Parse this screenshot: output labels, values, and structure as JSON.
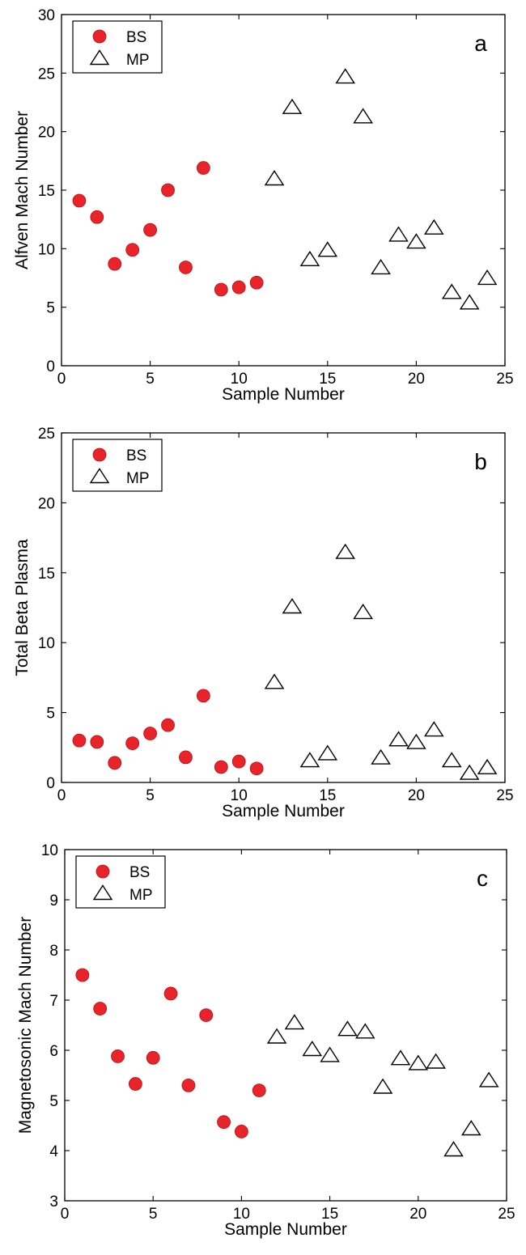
{
  "colors": {
    "bs_fill": "#e8232a",
    "mp_stroke": "#000000",
    "axis": "#000000",
    "background": "#ffffff"
  },
  "chart_data": [
    {
      "type": "scatter",
      "panel_label": "a",
      "title": "",
      "xlabel": "Sample Number",
      "ylabel": "Alfven Mach Number",
      "xlim": [
        0,
        25
      ],
      "ylim": [
        0,
        30
      ],
      "xticks": [
        0,
        5,
        10,
        15,
        20,
        25
      ],
      "yticks": [
        0,
        5,
        10,
        15,
        20,
        25,
        30
      ],
      "grid": false,
      "legend": "top-left",
      "series": [
        {
          "name": "BS",
          "marker": "filled-circle",
          "x": [
            1,
            2,
            3,
            4,
            5,
            6,
            7,
            8,
            9,
            10,
            11
          ],
          "y": [
            14.1,
            12.7,
            8.7,
            9.9,
            11.6,
            15.0,
            8.4,
            16.9,
            6.5,
            6.7,
            7.1
          ]
        },
        {
          "name": "MP",
          "marker": "open-triangle",
          "x": [
            12,
            13,
            14,
            15,
            16,
            17,
            18,
            19,
            20,
            21,
            22,
            23,
            24
          ],
          "y": [
            15.9,
            22.0,
            9.0,
            9.8,
            24.6,
            21.2,
            8.3,
            11.1,
            10.5,
            11.7,
            6.2,
            5.3,
            7.4
          ]
        }
      ]
    },
    {
      "type": "scatter",
      "panel_label": "b",
      "title": "",
      "xlabel": "Sample Number",
      "ylabel": "Total Beta Plasma",
      "xlim": [
        0,
        25
      ],
      "ylim": [
        0,
        25
      ],
      "xticks": [
        0,
        5,
        10,
        15,
        20,
        25
      ],
      "yticks": [
        0,
        5,
        10,
        15,
        20,
        25
      ],
      "grid": false,
      "legend": "top-left",
      "series": [
        {
          "name": "BS",
          "marker": "filled-circle",
          "x": [
            1,
            2,
            3,
            4,
            5,
            6,
            7,
            8,
            9,
            10,
            11
          ],
          "y": [
            3.0,
            2.9,
            1.4,
            2.8,
            3.5,
            4.1,
            1.8,
            6.2,
            1.1,
            1.5,
            1.0
          ]
        },
        {
          "name": "MP",
          "marker": "open-triangle",
          "x": [
            12,
            13,
            14,
            15,
            16,
            17,
            18,
            19,
            20,
            21,
            22,
            23,
            24
          ],
          "y": [
            7.1,
            12.5,
            1.5,
            2.0,
            16.4,
            12.1,
            1.7,
            3.0,
            2.8,
            3.7,
            1.5,
            0.6,
            1.0
          ]
        }
      ]
    },
    {
      "type": "scatter",
      "panel_label": "c",
      "title": "",
      "xlabel": "Sample Number",
      "ylabel": "Magnetosonic Mach Number",
      "xlim": [
        0,
        25
      ],
      "ylim": [
        3,
        10
      ],
      "xticks": [
        0,
        5,
        10,
        15,
        20,
        25
      ],
      "yticks": [
        3,
        4,
        5,
        6,
        7,
        8,
        9,
        10
      ],
      "grid": false,
      "legend": "top-left",
      "series": [
        {
          "name": "BS",
          "marker": "filled-circle",
          "x": [
            1,
            2,
            3,
            4,
            5,
            6,
            7,
            8,
            9,
            10,
            11
          ],
          "y": [
            7.5,
            6.83,
            5.88,
            5.33,
            5.85,
            7.13,
            5.3,
            6.7,
            4.57,
            4.38,
            5.2
          ]
        },
        {
          "name": "MP",
          "marker": "open-triangle",
          "x": [
            12,
            13,
            14,
            15,
            16,
            17,
            18,
            19,
            20,
            21,
            22,
            23,
            24
          ],
          "y": [
            6.25,
            6.53,
            6.0,
            5.88,
            6.4,
            6.35,
            5.25,
            5.82,
            5.72,
            5.75,
            4.0,
            4.42,
            5.38
          ]
        }
      ]
    }
  ]
}
